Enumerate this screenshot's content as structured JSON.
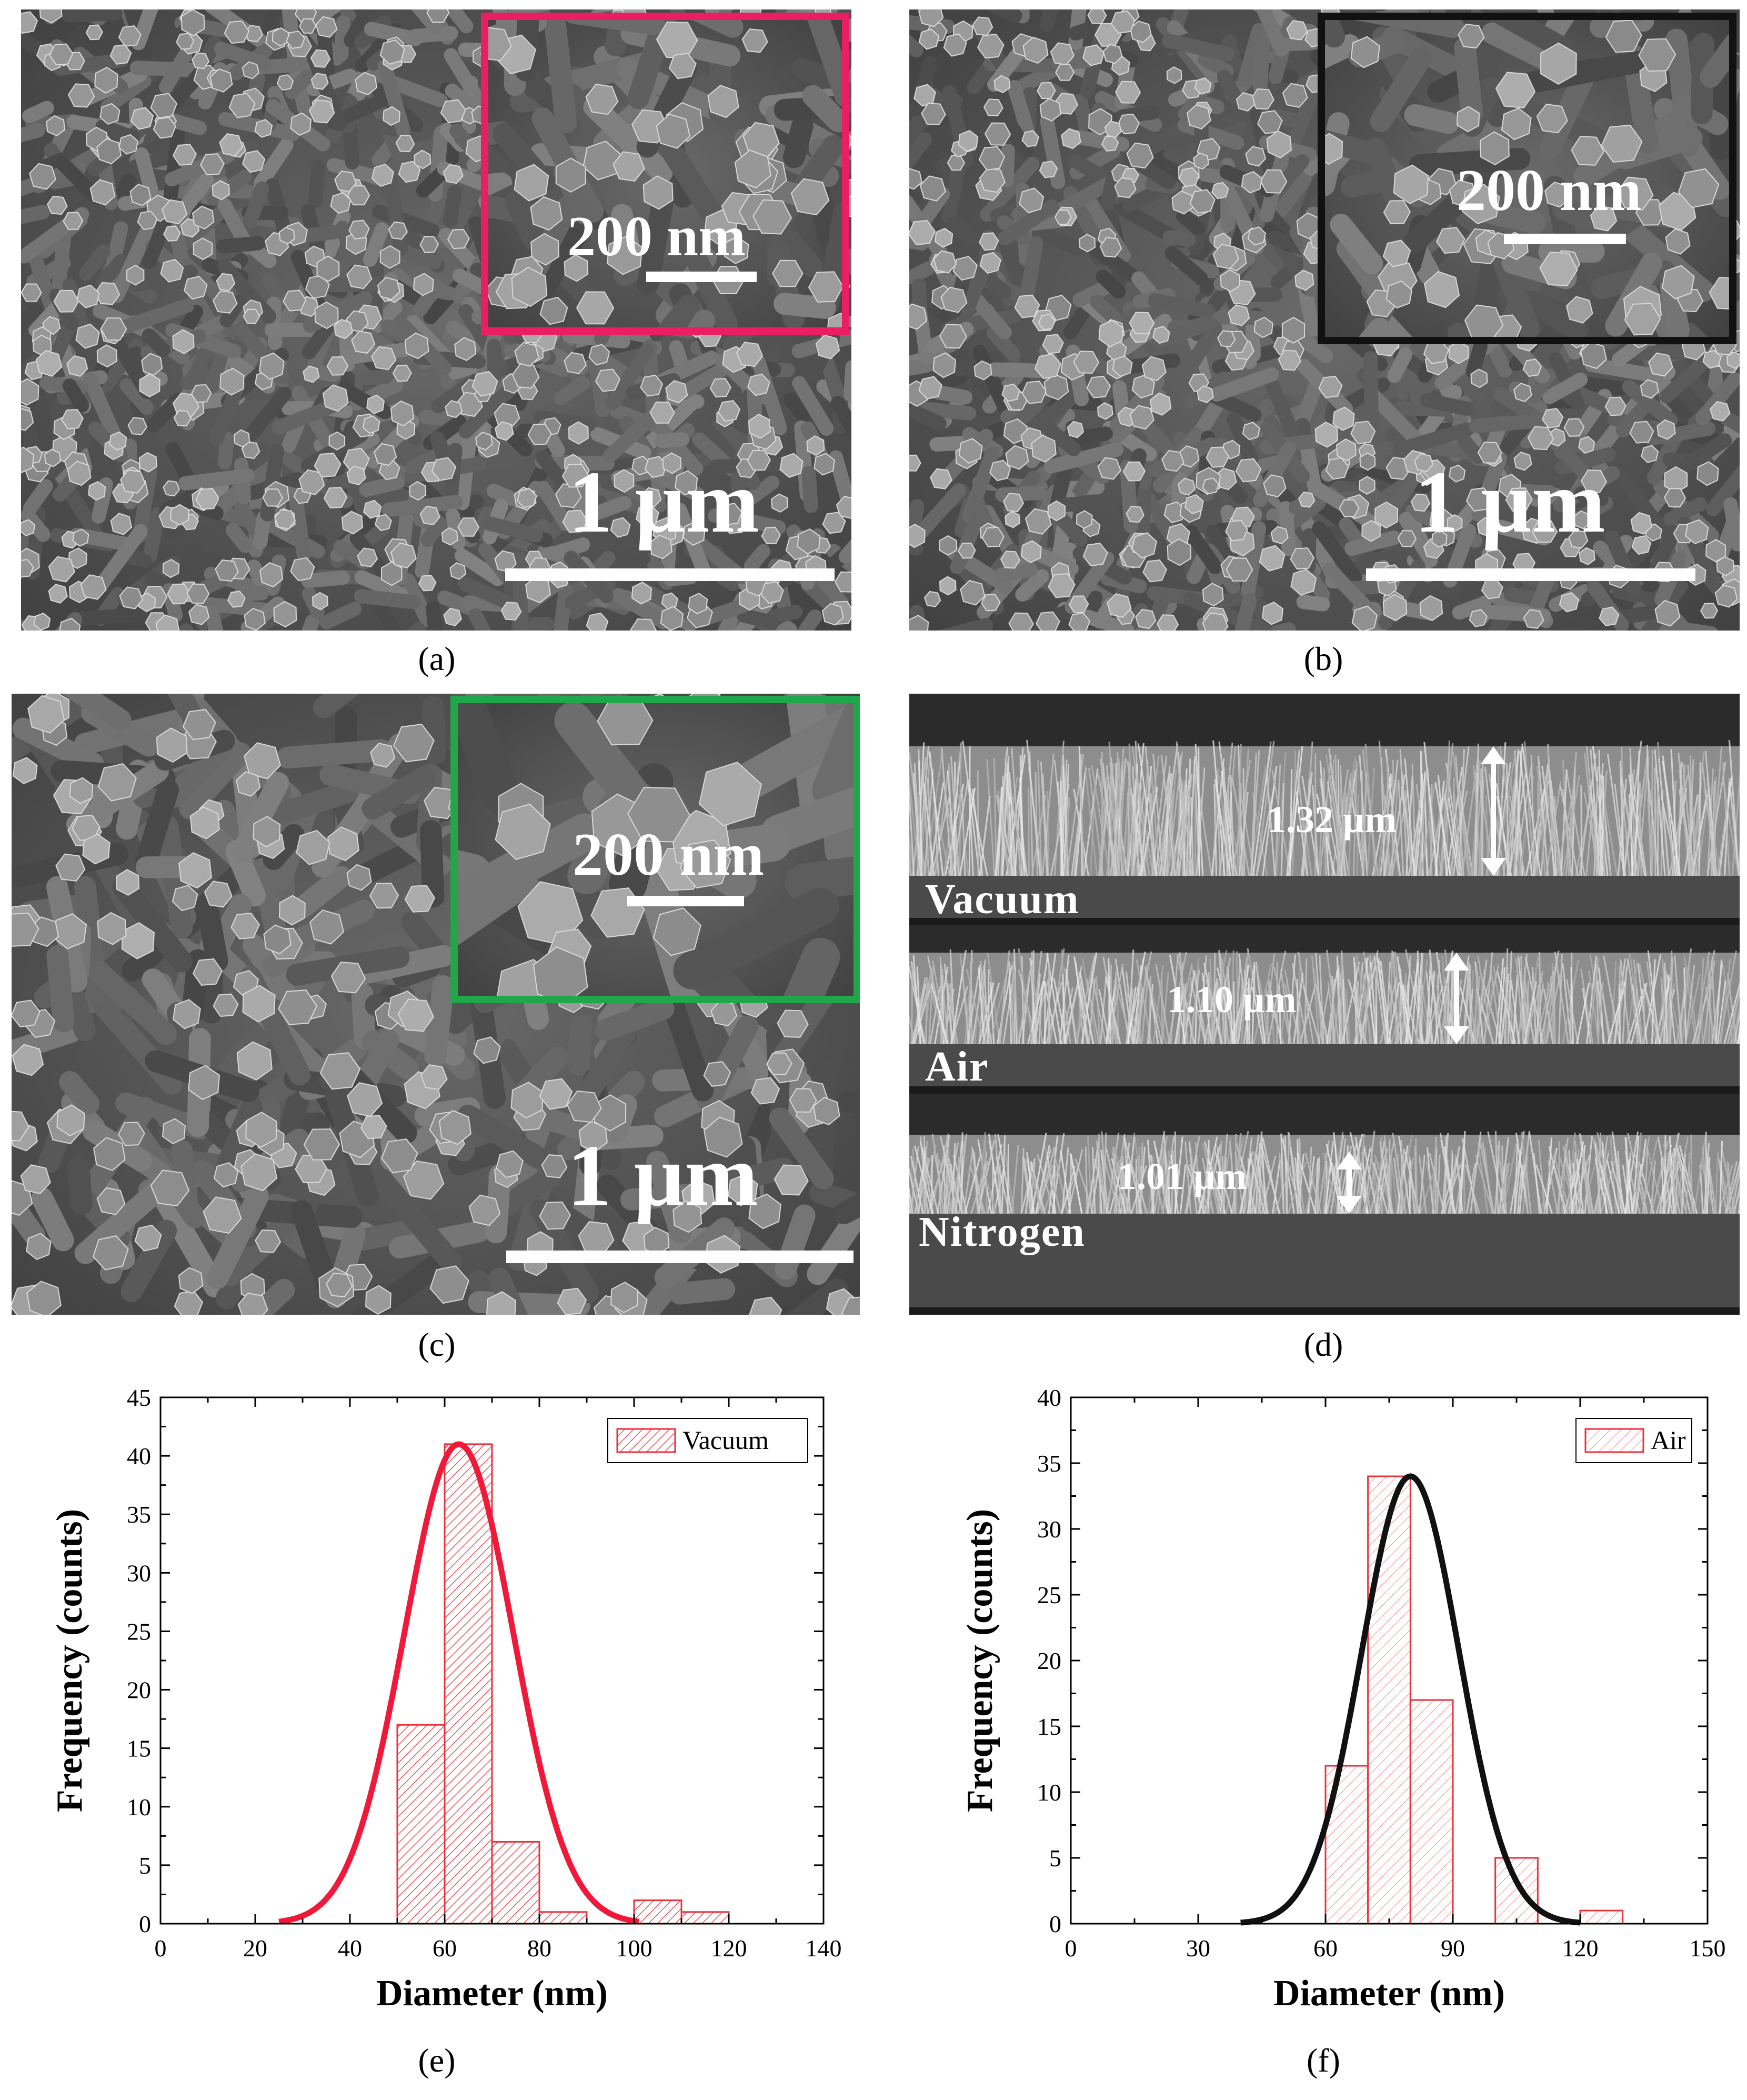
{
  "figure": {
    "captions": {
      "a": "(a)",
      "b": "(b)",
      "c": "(c)",
      "d": "(d)",
      "e": "(e)",
      "f": "(f)"
    }
  },
  "sem_panels": {
    "a": {
      "scale_main": "1 µm",
      "inset_scale": "200 nm",
      "inset_border": "#ec1e63"
    },
    "b": {
      "scale_main": "1 µm",
      "inset_scale": "200 nm",
      "inset_border": "#111111"
    },
    "c": {
      "scale_main": "1 µm",
      "inset_scale": "200 nm",
      "inset_border": "#20a74a"
    },
    "d": {
      "layers": [
        {
          "label": "Vacuum",
          "thickness": "1.32 µm",
          "height_um": 1.32
        },
        {
          "label": "Air",
          "thickness": "1.10 µm",
          "height_um": 1.1
        },
        {
          "label": "Nitrogen",
          "thickness": "1.01 µm",
          "height_um": 1.01
        }
      ]
    }
  },
  "chart_data": [
    {
      "id": "e",
      "type": "bar",
      "title": "",
      "xlabel": "Diameter (nm)",
      "ylabel": "Frequency (counts)",
      "xlim": [
        0,
        140
      ],
      "ylim": [
        0,
        45
      ],
      "xticks": [
        0,
        20,
        40,
        60,
        80,
        100,
        120,
        140
      ],
      "yticks": [
        0,
        5,
        10,
        15,
        20,
        25,
        30,
        35,
        40,
        45
      ],
      "bins": [
        {
          "start": 50,
          "end": 60,
          "count": 17
        },
        {
          "start": 60,
          "end": 70,
          "count": 41
        },
        {
          "start": 70,
          "end": 80,
          "count": 7
        },
        {
          "start": 80,
          "end": 90,
          "count": 1
        },
        {
          "start": 100,
          "end": 110,
          "count": 2
        },
        {
          "start": 110,
          "end": 120,
          "count": 1
        }
      ],
      "fit": {
        "type": "gaussian",
        "mean": 63,
        "sigma": 11.5,
        "amplitude": 41,
        "range": [
          25,
          101
        ],
        "color": "#f0193a"
      },
      "legend": {
        "label": "Vacuum",
        "position": "top-right"
      },
      "bar_color": "#e8323c",
      "hatch": "dense"
    },
    {
      "id": "f",
      "type": "bar",
      "title": "",
      "xlabel": "Diameter (nm)",
      "ylabel": "Frequency (counts)",
      "xlim": [
        0,
        150
      ],
      "ylim": [
        0,
        40
      ],
      "xticks": [
        0,
        30,
        60,
        90,
        120,
        150
      ],
      "yticks": [
        0,
        5,
        10,
        15,
        20,
        25,
        30,
        35,
        40
      ],
      "bins": [
        {
          "start": 60,
          "end": 70,
          "count": 12
        },
        {
          "start": 70,
          "end": 80,
          "count": 34
        },
        {
          "start": 80,
          "end": 90,
          "count": 17
        },
        {
          "start": 100,
          "end": 110,
          "count": 5
        },
        {
          "start": 120,
          "end": 130,
          "count": 1
        }
      ],
      "fit": {
        "type": "gaussian",
        "mean": 80,
        "sigma": 11.5,
        "amplitude": 34,
        "range": [
          40,
          120
        ],
        "color": "#111111"
      },
      "legend": {
        "label": "Air",
        "position": "top-right"
      },
      "bar_color": "#e8323c",
      "hatch": "light"
    }
  ]
}
